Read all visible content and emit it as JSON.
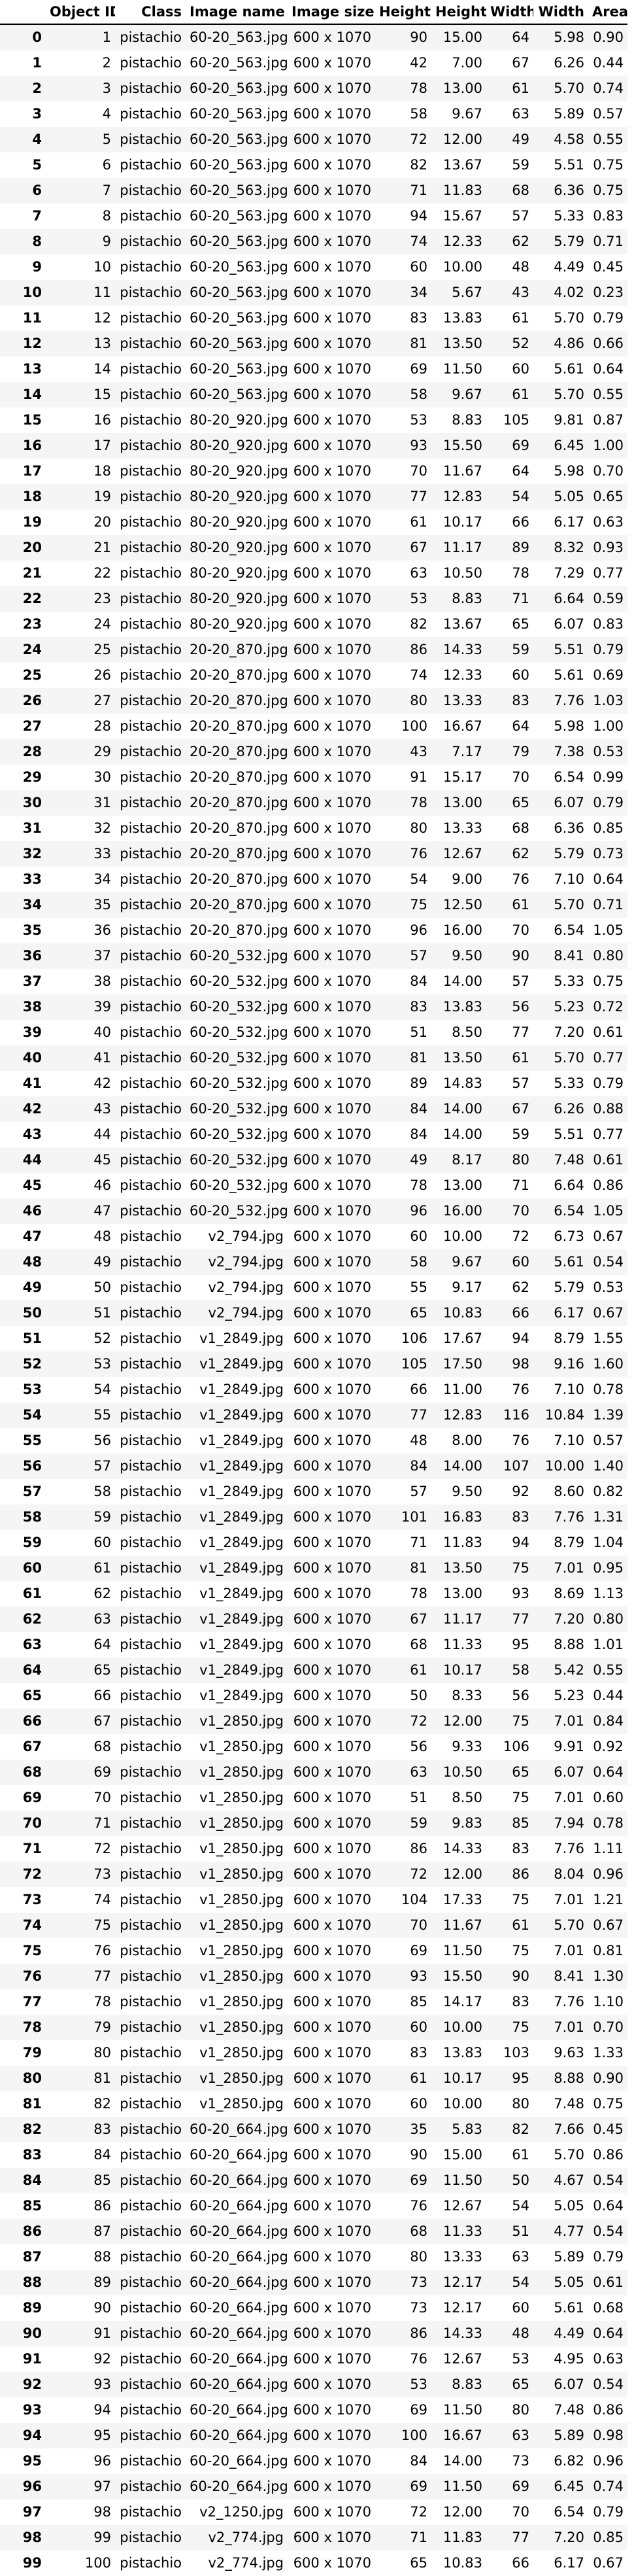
{
  "columns": [
    "",
    "Object ID",
    "Class",
    "Image name",
    "Image size",
    "Height",
    "Height",
    "Width",
    "Width",
    "Area"
  ],
  "rows": [
    [
      "0",
      "1",
      "pistachio",
      "60-20_563.jpg",
      "600 x 1070",
      "90",
      "15.00",
      "64",
      "5.98",
      "0.90"
    ],
    [
      "1",
      "2",
      "pistachio",
      "60-20_563.jpg",
      "600 x 1070",
      "42",
      "7.00",
      "67",
      "6.26",
      "0.44"
    ],
    [
      "2",
      "3",
      "pistachio",
      "60-20_563.jpg",
      "600 x 1070",
      "78",
      "13.00",
      "61",
      "5.70",
      "0.74"
    ],
    [
      "3",
      "4",
      "pistachio",
      "60-20_563.jpg",
      "600 x 1070",
      "58",
      "9.67",
      "63",
      "5.89",
      "0.57"
    ],
    [
      "4",
      "5",
      "pistachio",
      "60-20_563.jpg",
      "600 x 1070",
      "72",
      "12.00",
      "49",
      "4.58",
      "0.55"
    ],
    [
      "5",
      "6",
      "pistachio",
      "60-20_563.jpg",
      "600 x 1070",
      "82",
      "13.67",
      "59",
      "5.51",
      "0.75"
    ],
    [
      "6",
      "7",
      "pistachio",
      "60-20_563.jpg",
      "600 x 1070",
      "71",
      "11.83",
      "68",
      "6.36",
      "0.75"
    ],
    [
      "7",
      "8",
      "pistachio",
      "60-20_563.jpg",
      "600 x 1070",
      "94",
      "15.67",
      "57",
      "5.33",
      "0.83"
    ],
    [
      "8",
      "9",
      "pistachio",
      "60-20_563.jpg",
      "600 x 1070",
      "74",
      "12.33",
      "62",
      "5.79",
      "0.71"
    ],
    [
      "9",
      "10",
      "pistachio",
      "60-20_563.jpg",
      "600 x 1070",
      "60",
      "10.00",
      "48",
      "4.49",
      "0.45"
    ],
    [
      "10",
      "11",
      "pistachio",
      "60-20_563.jpg",
      "600 x 1070",
      "34",
      "5.67",
      "43",
      "4.02",
      "0.23"
    ],
    [
      "11",
      "12",
      "pistachio",
      "60-20_563.jpg",
      "600 x 1070",
      "83",
      "13.83",
      "61",
      "5.70",
      "0.79"
    ],
    [
      "12",
      "13",
      "pistachio",
      "60-20_563.jpg",
      "600 x 1070",
      "81",
      "13.50",
      "52",
      "4.86",
      "0.66"
    ],
    [
      "13",
      "14",
      "pistachio",
      "60-20_563.jpg",
      "600 x 1070",
      "69",
      "11.50",
      "60",
      "5.61",
      "0.64"
    ],
    [
      "14",
      "15",
      "pistachio",
      "60-20_563.jpg",
      "600 x 1070",
      "58",
      "9.67",
      "61",
      "5.70",
      "0.55"
    ],
    [
      "15",
      "16",
      "pistachio",
      "80-20_920.jpg",
      "600 x 1070",
      "53",
      "8.83",
      "105",
      "9.81",
      "0.87"
    ],
    [
      "16",
      "17",
      "pistachio",
      "80-20_920.jpg",
      "600 x 1070",
      "93",
      "15.50",
      "69",
      "6.45",
      "1.00"
    ],
    [
      "17",
      "18",
      "pistachio",
      "80-20_920.jpg",
      "600 x 1070",
      "70",
      "11.67",
      "64",
      "5.98",
      "0.70"
    ],
    [
      "18",
      "19",
      "pistachio",
      "80-20_920.jpg",
      "600 x 1070",
      "77",
      "12.83",
      "54",
      "5.05",
      "0.65"
    ],
    [
      "19",
      "20",
      "pistachio",
      "80-20_920.jpg",
      "600 x 1070",
      "61",
      "10.17",
      "66",
      "6.17",
      "0.63"
    ],
    [
      "20",
      "21",
      "pistachio",
      "80-20_920.jpg",
      "600 x 1070",
      "67",
      "11.17",
      "89",
      "8.32",
      "0.93"
    ],
    [
      "21",
      "22",
      "pistachio",
      "80-20_920.jpg",
      "600 x 1070",
      "63",
      "10.50",
      "78",
      "7.29",
      "0.77"
    ],
    [
      "22",
      "23",
      "pistachio",
      "80-20_920.jpg",
      "600 x 1070",
      "53",
      "8.83",
      "71",
      "6.64",
      "0.59"
    ],
    [
      "23",
      "24",
      "pistachio",
      "80-20_920.jpg",
      "600 x 1070",
      "82",
      "13.67",
      "65",
      "6.07",
      "0.83"
    ],
    [
      "24",
      "25",
      "pistachio",
      "20-20_870.jpg",
      "600 x 1070",
      "86",
      "14.33",
      "59",
      "5.51",
      "0.79"
    ],
    [
      "25",
      "26",
      "pistachio",
      "20-20_870.jpg",
      "600 x 1070",
      "74",
      "12.33",
      "60",
      "5.61",
      "0.69"
    ],
    [
      "26",
      "27",
      "pistachio",
      "20-20_870.jpg",
      "600 x 1070",
      "80",
      "13.33",
      "83",
      "7.76",
      "1.03"
    ],
    [
      "27",
      "28",
      "pistachio",
      "20-20_870.jpg",
      "600 x 1070",
      "100",
      "16.67",
      "64",
      "5.98",
      "1.00"
    ],
    [
      "28",
      "29",
      "pistachio",
      "20-20_870.jpg",
      "600 x 1070",
      "43",
      "7.17",
      "79",
      "7.38",
      "0.53"
    ],
    [
      "29",
      "30",
      "pistachio",
      "20-20_870.jpg",
      "600 x 1070",
      "91",
      "15.17",
      "70",
      "6.54",
      "0.99"
    ],
    [
      "30",
      "31",
      "pistachio",
      "20-20_870.jpg",
      "600 x 1070",
      "78",
      "13.00",
      "65",
      "6.07",
      "0.79"
    ],
    [
      "31",
      "32",
      "pistachio",
      "20-20_870.jpg",
      "600 x 1070",
      "80",
      "13.33",
      "68",
      "6.36",
      "0.85"
    ],
    [
      "32",
      "33",
      "pistachio",
      "20-20_870.jpg",
      "600 x 1070",
      "76",
      "12.67",
      "62",
      "5.79",
      "0.73"
    ],
    [
      "33",
      "34",
      "pistachio",
      "20-20_870.jpg",
      "600 x 1070",
      "54",
      "9.00",
      "76",
      "7.10",
      "0.64"
    ],
    [
      "34",
      "35",
      "pistachio",
      "20-20_870.jpg",
      "600 x 1070",
      "75",
      "12.50",
      "61",
      "5.70",
      "0.71"
    ],
    [
      "35",
      "36",
      "pistachio",
      "20-20_870.jpg",
      "600 x 1070",
      "96",
      "16.00",
      "70",
      "6.54",
      "1.05"
    ],
    [
      "36",
      "37",
      "pistachio",
      "60-20_532.jpg",
      "600 x 1070",
      "57",
      "9.50",
      "90",
      "8.41",
      "0.80"
    ],
    [
      "37",
      "38",
      "pistachio",
      "60-20_532.jpg",
      "600 x 1070",
      "84",
      "14.00",
      "57",
      "5.33",
      "0.75"
    ],
    [
      "38",
      "39",
      "pistachio",
      "60-20_532.jpg",
      "600 x 1070",
      "83",
      "13.83",
      "56",
      "5.23",
      "0.72"
    ],
    [
      "39",
      "40",
      "pistachio",
      "60-20_532.jpg",
      "600 x 1070",
      "51",
      "8.50",
      "77",
      "7.20",
      "0.61"
    ],
    [
      "40",
      "41",
      "pistachio",
      "60-20_532.jpg",
      "600 x 1070",
      "81",
      "13.50",
      "61",
      "5.70",
      "0.77"
    ],
    [
      "41",
      "42",
      "pistachio",
      "60-20_532.jpg",
      "600 x 1070",
      "89",
      "14.83",
      "57",
      "5.33",
      "0.79"
    ],
    [
      "42",
      "43",
      "pistachio",
      "60-20_532.jpg",
      "600 x 1070",
      "84",
      "14.00",
      "67",
      "6.26",
      "0.88"
    ],
    [
      "43",
      "44",
      "pistachio",
      "60-20_532.jpg",
      "600 x 1070",
      "84",
      "14.00",
      "59",
      "5.51",
      "0.77"
    ],
    [
      "44",
      "45",
      "pistachio",
      "60-20_532.jpg",
      "600 x 1070",
      "49",
      "8.17",
      "80",
      "7.48",
      "0.61"
    ],
    [
      "45",
      "46",
      "pistachio",
      "60-20_532.jpg",
      "600 x 1070",
      "78",
      "13.00",
      "71",
      "6.64",
      "0.86"
    ],
    [
      "46",
      "47",
      "pistachio",
      "60-20_532.jpg",
      "600 x 1070",
      "96",
      "16.00",
      "70",
      "6.54",
      "1.05"
    ],
    [
      "47",
      "48",
      "pistachio",
      "v2_794.jpg",
      "600 x 1070",
      "60",
      "10.00",
      "72",
      "6.73",
      "0.67"
    ],
    [
      "48",
      "49",
      "pistachio",
      "v2_794.jpg",
      "600 x 1070",
      "58",
      "9.67",
      "60",
      "5.61",
      "0.54"
    ],
    [
      "49",
      "50",
      "pistachio",
      "v2_794.jpg",
      "600 x 1070",
      "55",
      "9.17",
      "62",
      "5.79",
      "0.53"
    ],
    [
      "50",
      "51",
      "pistachio",
      "v2_794.jpg",
      "600 x 1070",
      "65",
      "10.83",
      "66",
      "6.17",
      "0.67"
    ],
    [
      "51",
      "52",
      "pistachio",
      "v1_2849.jpg",
      "600 x 1070",
      "106",
      "17.67",
      "94",
      "8.79",
      "1.55"
    ],
    [
      "52",
      "53",
      "pistachio",
      "v1_2849.jpg",
      "600 x 1070",
      "105",
      "17.50",
      "98",
      "9.16",
      "1.60"
    ],
    [
      "53",
      "54",
      "pistachio",
      "v1_2849.jpg",
      "600 x 1070",
      "66",
      "11.00",
      "76",
      "7.10",
      "0.78"
    ],
    [
      "54",
      "55",
      "pistachio",
      "v1_2849.jpg",
      "600 x 1070",
      "77",
      "12.83",
      "116",
      "10.84",
      "1.39"
    ],
    [
      "55",
      "56",
      "pistachio",
      "v1_2849.jpg",
      "600 x 1070",
      "48",
      "8.00",
      "76",
      "7.10",
      "0.57"
    ],
    [
      "56",
      "57",
      "pistachio",
      "v1_2849.jpg",
      "600 x 1070",
      "84",
      "14.00",
      "107",
      "10.00",
      "1.40"
    ],
    [
      "57",
      "58",
      "pistachio",
      "v1_2849.jpg",
      "600 x 1070",
      "57",
      "9.50",
      "92",
      "8.60",
      "0.82"
    ],
    [
      "58",
      "59",
      "pistachio",
      "v1_2849.jpg",
      "600 x 1070",
      "101",
      "16.83",
      "83",
      "7.76",
      "1.31"
    ],
    [
      "59",
      "60",
      "pistachio",
      "v1_2849.jpg",
      "600 x 1070",
      "71",
      "11.83",
      "94",
      "8.79",
      "1.04"
    ],
    [
      "60",
      "61",
      "pistachio",
      "v1_2849.jpg",
      "600 x 1070",
      "81",
      "13.50",
      "75",
      "7.01",
      "0.95"
    ],
    [
      "61",
      "62",
      "pistachio",
      "v1_2849.jpg",
      "600 x 1070",
      "78",
      "13.00",
      "93",
      "8.69",
      "1.13"
    ],
    [
      "62",
      "63",
      "pistachio",
      "v1_2849.jpg",
      "600 x 1070",
      "67",
      "11.17",
      "77",
      "7.20",
      "0.80"
    ],
    [
      "63",
      "64",
      "pistachio",
      "v1_2849.jpg",
      "600 x 1070",
      "68",
      "11.33",
      "95",
      "8.88",
      "1.01"
    ],
    [
      "64",
      "65",
      "pistachio",
      "v1_2849.jpg",
      "600 x 1070",
      "61",
      "10.17",
      "58",
      "5.42",
      "0.55"
    ],
    [
      "65",
      "66",
      "pistachio",
      "v1_2849.jpg",
      "600 x 1070",
      "50",
      "8.33",
      "56",
      "5.23",
      "0.44"
    ],
    [
      "66",
      "67",
      "pistachio",
      "v1_2850.jpg",
      "600 x 1070",
      "72",
      "12.00",
      "75",
      "7.01",
      "0.84"
    ],
    [
      "67",
      "68",
      "pistachio",
      "v1_2850.jpg",
      "600 x 1070",
      "56",
      "9.33",
      "106",
      "9.91",
      "0.92"
    ],
    [
      "68",
      "69",
      "pistachio",
      "v1_2850.jpg",
      "600 x 1070",
      "63",
      "10.50",
      "65",
      "6.07",
      "0.64"
    ],
    [
      "69",
      "70",
      "pistachio",
      "v1_2850.jpg",
      "600 x 1070",
      "51",
      "8.50",
      "75",
      "7.01",
      "0.60"
    ],
    [
      "70",
      "71",
      "pistachio",
      "v1_2850.jpg",
      "600 x 1070",
      "59",
      "9.83",
      "85",
      "7.94",
      "0.78"
    ],
    [
      "71",
      "72",
      "pistachio",
      "v1_2850.jpg",
      "600 x 1070",
      "86",
      "14.33",
      "83",
      "7.76",
      "1.11"
    ],
    [
      "72",
      "73",
      "pistachio",
      "v1_2850.jpg",
      "600 x 1070",
      "72",
      "12.00",
      "86",
      "8.04",
      "0.96"
    ],
    [
      "73",
      "74",
      "pistachio",
      "v1_2850.jpg",
      "600 x 1070",
      "104",
      "17.33",
      "75",
      "7.01",
      "1.21"
    ],
    [
      "74",
      "75",
      "pistachio",
      "v1_2850.jpg",
      "600 x 1070",
      "70",
      "11.67",
      "61",
      "5.70",
      "0.67"
    ],
    [
      "75",
      "76",
      "pistachio",
      "v1_2850.jpg",
      "600 x 1070",
      "69",
      "11.50",
      "75",
      "7.01",
      "0.81"
    ],
    [
      "76",
      "77",
      "pistachio",
      "v1_2850.jpg",
      "600 x 1070",
      "93",
      "15.50",
      "90",
      "8.41",
      "1.30"
    ],
    [
      "77",
      "78",
      "pistachio",
      "v1_2850.jpg",
      "600 x 1070",
      "85",
      "14.17",
      "83",
      "7.76",
      "1.10"
    ],
    [
      "78",
      "79",
      "pistachio",
      "v1_2850.jpg",
      "600 x 1070",
      "60",
      "10.00",
      "75",
      "7.01",
      "0.70"
    ],
    [
      "79",
      "80",
      "pistachio",
      "v1_2850.jpg",
      "600 x 1070",
      "83",
      "13.83",
      "103",
      "9.63",
      "1.33"
    ],
    [
      "80",
      "81",
      "pistachio",
      "v1_2850.jpg",
      "600 x 1070",
      "61",
      "10.17",
      "95",
      "8.88",
      "0.90"
    ],
    [
      "81",
      "82",
      "pistachio",
      "v1_2850.jpg",
      "600 x 1070",
      "60",
      "10.00",
      "80",
      "7.48",
      "0.75"
    ],
    [
      "82",
      "83",
      "pistachio",
      "60-20_664.jpg",
      "600 x 1070",
      "35",
      "5.83",
      "82",
      "7.66",
      "0.45"
    ],
    [
      "83",
      "84",
      "pistachio",
      "60-20_664.jpg",
      "600 x 1070",
      "90",
      "15.00",
      "61",
      "5.70",
      "0.86"
    ],
    [
      "84",
      "85",
      "pistachio",
      "60-20_664.jpg",
      "600 x 1070",
      "69",
      "11.50",
      "50",
      "4.67",
      "0.54"
    ],
    [
      "85",
      "86",
      "pistachio",
      "60-20_664.jpg",
      "600 x 1070",
      "76",
      "12.67",
      "54",
      "5.05",
      "0.64"
    ],
    [
      "86",
      "87",
      "pistachio",
      "60-20_664.jpg",
      "600 x 1070",
      "68",
      "11.33",
      "51",
      "4.77",
      "0.54"
    ],
    [
      "87",
      "88",
      "pistachio",
      "60-20_664.jpg",
      "600 x 1070",
      "80",
      "13.33",
      "63",
      "5.89",
      "0.79"
    ],
    [
      "88",
      "89",
      "pistachio",
      "60-20_664.jpg",
      "600 x 1070",
      "73",
      "12.17",
      "54",
      "5.05",
      "0.61"
    ],
    [
      "89",
      "90",
      "pistachio",
      "60-20_664.jpg",
      "600 x 1070",
      "73",
      "12.17",
      "60",
      "5.61",
      "0.68"
    ],
    [
      "90",
      "91",
      "pistachio",
      "60-20_664.jpg",
      "600 x 1070",
      "86",
      "14.33",
      "48",
      "4.49",
      "0.64"
    ],
    [
      "91",
      "92",
      "pistachio",
      "60-20_664.jpg",
      "600 x 1070",
      "76",
      "12.67",
      "53",
      "4.95",
      "0.63"
    ],
    [
      "92",
      "93",
      "pistachio",
      "60-20_664.jpg",
      "600 x 1070",
      "53",
      "8.83",
      "65",
      "6.07",
      "0.54"
    ],
    [
      "93",
      "94",
      "pistachio",
      "60-20_664.jpg",
      "600 x 1070",
      "69",
      "11.50",
      "80",
      "7.48",
      "0.86"
    ],
    [
      "94",
      "95",
      "pistachio",
      "60-20_664.jpg",
      "600 x 1070",
      "100",
      "16.67",
      "63",
      "5.89",
      "0.98"
    ],
    [
      "95",
      "96",
      "pistachio",
      "60-20_664.jpg",
      "600 x 1070",
      "84",
      "14.00",
      "73",
      "6.82",
      "0.96"
    ],
    [
      "96",
      "97",
      "pistachio",
      "60-20_664.jpg",
      "600 x 1070",
      "69",
      "11.50",
      "69",
      "6.45",
      "0.74"
    ],
    [
      "97",
      "98",
      "pistachio",
      "v2_1250.jpg",
      "600 x 1070",
      "72",
      "12.00",
      "70",
      "6.54",
      "0.79"
    ],
    [
      "98",
      "99",
      "pistachio",
      "v2_774.jpg",
      "600 x 1070",
      "71",
      "11.83",
      "77",
      "7.20",
      "0.85"
    ],
    [
      "99",
      "100",
      "pistachio",
      "v2_774.jpg",
      "600 x 1070",
      "65",
      "10.83",
      "66",
      "6.17",
      "0.67"
    ]
  ]
}
